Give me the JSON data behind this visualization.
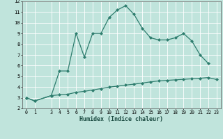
{
  "xlabel": "Humidex (Indice chaleur)",
  "line_color": "#2e7d6e",
  "bg_color": "#c0e4dc",
  "grid_color": "#ffffff",
  "ylim": [
    2,
    12
  ],
  "xlim": [
    -0.5,
    23.5
  ],
  "yticks": [
    2,
    3,
    4,
    5,
    6,
    7,
    8,
    9,
    10,
    11,
    12
  ],
  "xticks": [
    0,
    1,
    3,
    4,
    5,
    6,
    7,
    8,
    9,
    10,
    11,
    12,
    13,
    14,
    15,
    16,
    17,
    18,
    19,
    20,
    21,
    22,
    23
  ],
  "x_lower": [
    0,
    1,
    3,
    4,
    5,
    6,
    7,
    8,
    9,
    10,
    11,
    12,
    13,
    14,
    15,
    16,
    17,
    18,
    19,
    20,
    21,
    22,
    23
  ],
  "y_lower": [
    3.0,
    2.7,
    3.2,
    3.27,
    3.33,
    3.5,
    3.6,
    3.72,
    3.85,
    4.0,
    4.08,
    4.18,
    4.27,
    4.37,
    4.48,
    4.57,
    4.62,
    4.67,
    4.72,
    4.77,
    4.82,
    4.88,
    4.7
  ],
  "x_upper": [
    0,
    1,
    3,
    4,
    5,
    6,
    7,
    8,
    9,
    10,
    11,
    12,
    13,
    14,
    15,
    16,
    17,
    18,
    19,
    20,
    21,
    22
  ],
  "y_upper": [
    3.0,
    2.7,
    3.2,
    5.5,
    5.5,
    9.0,
    6.8,
    9.0,
    9.0,
    10.5,
    11.2,
    11.6,
    10.8,
    9.5,
    8.6,
    8.4,
    8.4,
    8.6,
    9.0,
    8.3,
    7.0,
    6.2
  ]
}
